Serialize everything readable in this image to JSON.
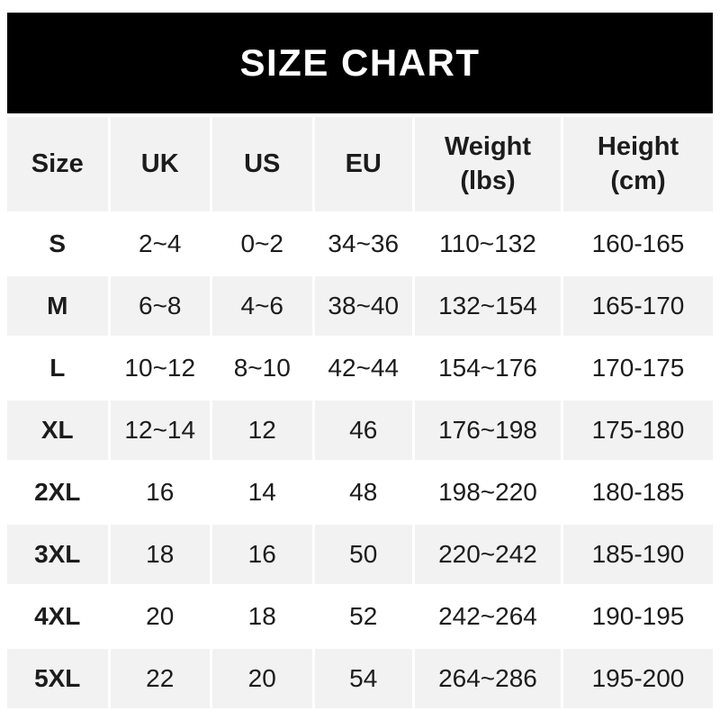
{
  "banner": {
    "title": "SIZE CHART"
  },
  "colors": {
    "banner_bg": "#000000",
    "banner_text": "#ffffff",
    "stripe_bg": "#f2f2f2",
    "row_bg": "#ffffff",
    "text": "#1c1c1c",
    "page_bg": "#ffffff"
  },
  "chart_data": {
    "type": "table",
    "title": "SIZE CHART",
    "columns": [
      "Size",
      "UK",
      "US",
      "EU",
      "Weight (lbs)",
      "Height (cm)"
    ],
    "header_lines": [
      [
        "Size"
      ],
      [
        "UK"
      ],
      [
        "US"
      ],
      [
        "EU"
      ],
      [
        "Weight",
        "(lbs)"
      ],
      [
        "Height",
        "(cm)"
      ]
    ],
    "rows": [
      [
        "S",
        "2~4",
        "0~2",
        "34~36",
        "110~132",
        "160-165"
      ],
      [
        "M",
        "6~8",
        "4~6",
        "38~40",
        "132~154",
        "165-170"
      ],
      [
        "L",
        "10~12",
        "8~10",
        "42~44",
        "154~176",
        "170-175"
      ],
      [
        "XL",
        "12~14",
        "12",
        "46",
        "176~198",
        "175-180"
      ],
      [
        "2XL",
        "16",
        "14",
        "48",
        "198~220",
        "180-185"
      ],
      [
        "3XL",
        "18",
        "16",
        "50",
        "220~242",
        "185-190"
      ],
      [
        "4XL",
        "20",
        "18",
        "52",
        "242~264",
        "190-195"
      ],
      [
        "5XL",
        "22",
        "20",
        "54",
        "264~286",
        "195-200"
      ]
    ],
    "layout": {
      "striped_rows": "header and even data rows (M, XL, 3XL, 5XL) are light gray",
      "column_separator": "3px white gaps",
      "value_separators": {
        "uk_us_eu_weight": "~",
        "height": "-"
      }
    }
  }
}
